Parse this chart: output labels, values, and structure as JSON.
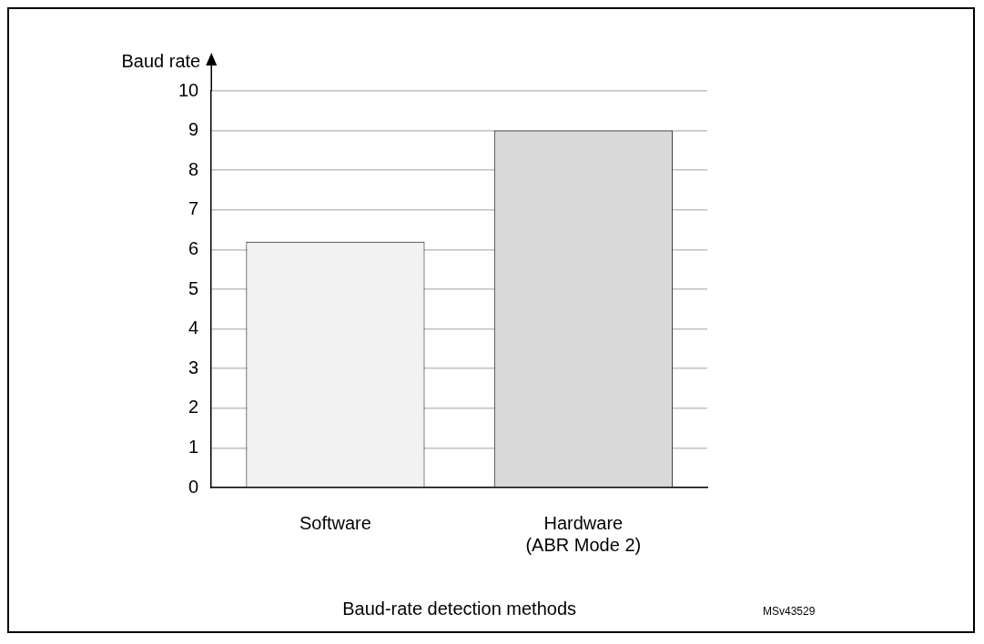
{
  "chart_data": {
    "type": "bar",
    "xlabel": "Baud-rate detection methods",
    "ylabel": "Baud rate",
    "categories": [
      "Software",
      "Hardware\n(ABR Mode 2)"
    ],
    "values": [
      6.2,
      9
    ],
    "colors": [
      "#f2f2f2",
      "#d9d9d9"
    ],
    "ylim": [
      0,
      10
    ],
    "yticks": [
      0,
      1,
      2,
      3,
      4,
      5,
      6,
      7,
      8,
      9,
      10
    ],
    "grid": "y",
    "legend": false,
    "annotations": [
      "MSv43529"
    ]
  }
}
